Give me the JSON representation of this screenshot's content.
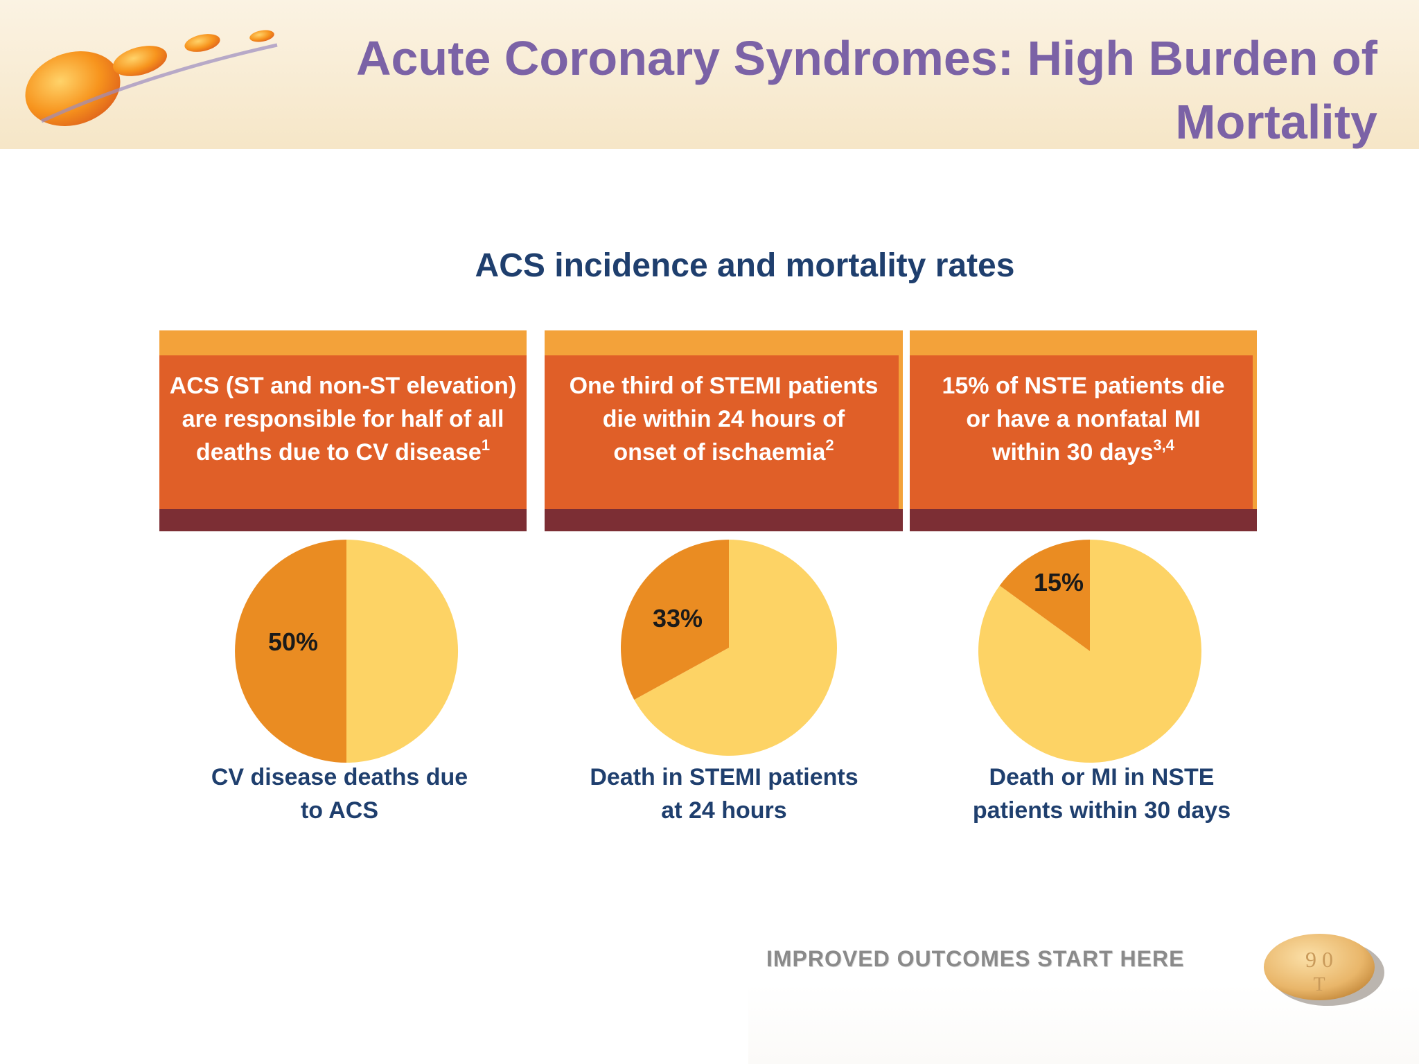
{
  "header": {
    "title_line1": "Acute Coronary Syndromes: High Burden of",
    "title_line2": "Mortality"
  },
  "subtitle": "ACS incidence and mortality rates",
  "boxes": [
    {
      "lines": [
        "ACS (ST and non-ST elevation)",
        "are responsible for half of all",
        "deaths due to CV disease"
      ],
      "sup": "1"
    },
    {
      "lines": [
        "One third of STEMI patients",
        "die within 24 hours of",
        "onset of ischaemia"
      ],
      "sup": "2"
    },
    {
      "lines": [
        "15% of NSTE patients die",
        "or have a nonfatal MI",
        "within 30 days"
      ],
      "sup": "3,4"
    }
  ],
  "chart_data": [
    {
      "type": "pie",
      "label": "50%",
      "value": 50,
      "remainder": 50,
      "caption": [
        "CV disease deaths due",
        "to ACS"
      ],
      "colors": {
        "highlight": "#ea8c22",
        "rest": "#fdd365"
      }
    },
    {
      "type": "pie",
      "label": "33%",
      "value": 33,
      "remainder": 67,
      "caption": [
        "Death in STEMI patients",
        "at 24 hours"
      ],
      "colors": {
        "highlight": "#ea8c22",
        "rest": "#fdd365"
      }
    },
    {
      "type": "pie",
      "label": "15%",
      "value": 15,
      "remainder": 85,
      "caption": [
        "Death or MI in NSTE",
        "patients within 30 days"
      ],
      "colors": {
        "highlight": "#ea8c22",
        "rest": "#fdd365"
      }
    }
  ],
  "footer": {
    "tagline": "IMPROVED OUTCOMES START HERE",
    "pill_text": [
      "9 0",
      "T"
    ]
  },
  "colors": {
    "title": "#7b62a6",
    "navy": "#1f3f6e",
    "box_orange": "#e05f28",
    "box_top": "#f3a23a",
    "box_bottom": "#7c2e34"
  }
}
